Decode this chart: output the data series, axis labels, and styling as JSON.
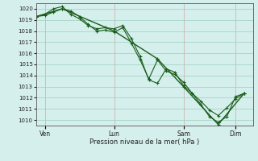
{
  "title": "",
  "xlabel": "Pression niveau de la mer( hPa )",
  "ylim": [
    1009.5,
    1020.5
  ],
  "yticks": [
    1010,
    1011,
    1012,
    1013,
    1014,
    1015,
    1016,
    1017,
    1018,
    1019,
    1020
  ],
  "bg_color": "#d4efec",
  "grid_color": "#9ecfbf",
  "line_color": "#1a5c1a",
  "xtick_labels": [
    "Ven",
    "Lun",
    "Sam",
    "Dim"
  ],
  "xtick_positions": [
    1,
    9,
    17,
    23
  ],
  "xlim": [
    0,
    25
  ],
  "line1_x": [
    0,
    1,
    2,
    3,
    4,
    5,
    6,
    7,
    8,
    9,
    10,
    11,
    12,
    13,
    14,
    15,
    16,
    17,
    18,
    19,
    20,
    21,
    22,
    23,
    24
  ],
  "line1_y": [
    1019.3,
    1019.5,
    1020.0,
    1020.2,
    1019.5,
    1019.1,
    1018.5,
    1018.2,
    1018.3,
    1018.2,
    1018.5,
    1017.3,
    1015.7,
    1013.6,
    1013.3,
    1014.6,
    1014.3,
    1013.1,
    1012.4,
    1011.4,
    1010.3,
    1009.8,
    1010.3,
    1012.1,
    1012.4
  ],
  "line2_x": [
    0,
    1,
    2,
    3,
    4,
    5,
    6,
    7,
    8,
    9,
    10,
    11,
    12,
    13,
    14,
    15,
    16,
    17,
    18,
    19,
    20,
    21,
    22,
    23,
    24
  ],
  "line2_y": [
    1019.3,
    1019.4,
    1019.7,
    1020.0,
    1019.8,
    1019.3,
    1018.6,
    1018.0,
    1018.1,
    1017.9,
    1018.3,
    1016.9,
    1015.4,
    1013.7,
    1015.4,
    1014.4,
    1014.1,
    1013.4,
    1012.4,
    1011.7,
    1010.9,
    1010.4,
    1011.1,
    1011.9,
    1012.4
  ],
  "line3_x": [
    0,
    3,
    9,
    14,
    17,
    21,
    24
  ],
  "line3_y": [
    1019.3,
    1020.0,
    1018.0,
    1015.5,
    1013.0,
    1009.6,
    1012.4
  ]
}
